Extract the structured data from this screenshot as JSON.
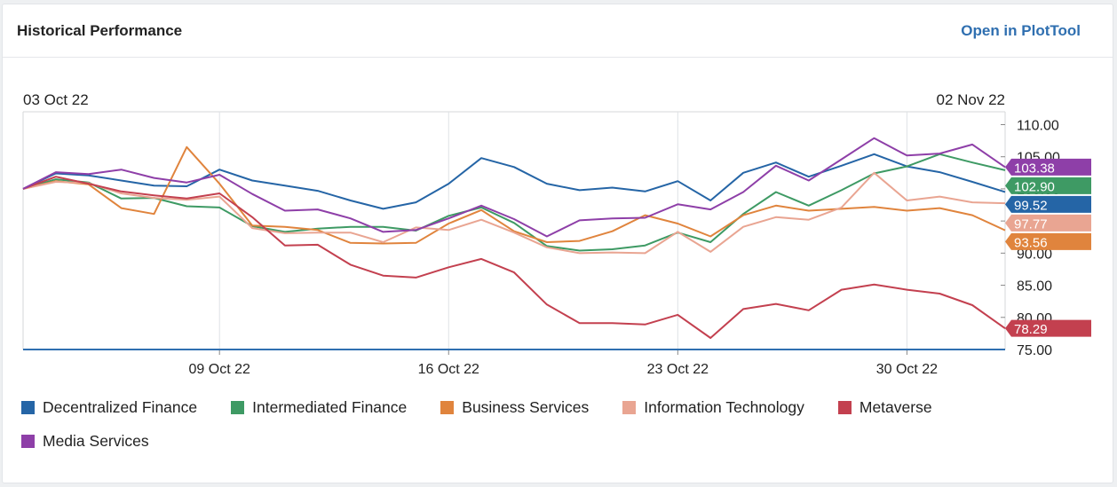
{
  "card": {
    "title": "Historical Performance",
    "open_link": "Open in PlotTool"
  },
  "chart_data": {
    "type": "line",
    "start_date_label": "03 Oct 22",
    "end_date_label": "02 Nov 22",
    "x": [
      "2022-10-03",
      "2022-10-04",
      "2022-10-05",
      "2022-10-06",
      "2022-10-07",
      "2022-10-08",
      "2022-10-09",
      "2022-10-10",
      "2022-10-11",
      "2022-10-12",
      "2022-10-13",
      "2022-10-14",
      "2022-10-15",
      "2022-10-16",
      "2022-10-17",
      "2022-10-18",
      "2022-10-19",
      "2022-10-20",
      "2022-10-21",
      "2022-10-22",
      "2022-10-23",
      "2022-10-24",
      "2022-10-25",
      "2022-10-26",
      "2022-10-27",
      "2022-10-28",
      "2022-10-29",
      "2022-10-30",
      "2022-10-31",
      "2022-11-01",
      "2022-11-02"
    ],
    "x_ticks": [
      "09 Oct 22",
      "16 Oct 22",
      "23 Oct 22",
      "30 Oct 22"
    ],
    "x_tick_dates": [
      "2022-10-09",
      "2022-10-16",
      "2022-10-23",
      "2022-10-30"
    ],
    "y_ticks": [
      "75.00",
      "80.00",
      "85.00",
      "90.00",
      "95.00",
      "100.00",
      "105.00",
      "110.00"
    ],
    "y_tick_values": [
      75,
      80,
      85,
      90,
      95,
      100,
      105,
      110
    ],
    "ylim": [
      75,
      112
    ],
    "grid": "vertical",
    "legend_position": "bottom",
    "series": [
      {
        "name": "Decentralized Finance",
        "color": "#2565a6",
        "end_label": "99.52",
        "values": [
          100,
          102.4,
          102.1,
          101.3,
          100.5,
          100.4,
          103,
          101.3,
          100.5,
          99.7,
          98.2,
          96.9,
          97.9,
          100.8,
          104.8,
          103.4,
          100.8,
          99.8,
          100.2,
          99.6,
          101.2,
          98.2,
          102.5,
          104.1,
          101.9,
          103.6,
          105.4,
          103.5,
          102.6,
          101.1,
          99.52
        ]
      },
      {
        "name": "Intermediated Finance",
        "color": "#3e9a64",
        "end_label": "102.90",
        "values": [
          100,
          101.5,
          101,
          98.5,
          98.6,
          97.3,
          97.1,
          94.2,
          93.3,
          93.8,
          94.1,
          94.1,
          93.5,
          95.8,
          97.1,
          94.7,
          91.1,
          90.4,
          90.6,
          91.2,
          93.2,
          91.7,
          96.1,
          99.5,
          97.4,
          99.8,
          102.4,
          103.5,
          105.4,
          104.1,
          102.9
        ]
      },
      {
        "name": "Business Services",
        "color": "#e0843d",
        "end_label": "93.56",
        "values": [
          100,
          101.2,
          100.7,
          97,
          96.1,
          106.5,
          100.8,
          94.3,
          94.1,
          93.6,
          91.6,
          91.5,
          91.6,
          94.6,
          96.7,
          93.4,
          91.7,
          91.9,
          93.4,
          95.9,
          94.6,
          92.6,
          95.9,
          97.4,
          96.6,
          96.9,
          97.2,
          96.6,
          97,
          95.9,
          93.56
        ]
      },
      {
        "name": "Information Technology",
        "color": "#e9a592",
        "end_label": "97.77",
        "values": [
          100,
          101.1,
          100.9,
          99.3,
          98.6,
          98.3,
          98.8,
          93.9,
          93.1,
          93.2,
          93.2,
          91.7,
          94,
          93.6,
          95.2,
          93.2,
          90.9,
          90,
          90.1,
          90,
          93.3,
          90.2,
          94.1,
          95.6,
          95.2,
          97.1,
          102.5,
          98.2,
          98.8,
          97.9,
          97.77
        ]
      },
      {
        "name": "Metaverse",
        "color": "#c3404f",
        "end_label": "78.29",
        "values": [
          100,
          101.9,
          100.8,
          99.6,
          99,
          98.5,
          99.3,
          95.6,
          91.2,
          91.3,
          88.2,
          86.5,
          86.2,
          87.8,
          89.1,
          87,
          82,
          79.1,
          79.1,
          78.9,
          80.4,
          76.8,
          81.3,
          82.1,
          81.1,
          84.3,
          85.1,
          84.3,
          83.7,
          81.9,
          78.29
        ]
      },
      {
        "name": "Media Services",
        "color": "#8e3fa8",
        "end_label": "103.38",
        "values": [
          100,
          102.6,
          102.3,
          103,
          101.7,
          101,
          102.2,
          99.2,
          96.6,
          96.8,
          95.4,
          93.3,
          93.6,
          95.4,
          97.4,
          95.3,
          92.6,
          95.1,
          95.4,
          95.5,
          97.6,
          96.8,
          99.5,
          103.6,
          101.3,
          104.6,
          107.9,
          105.2,
          105.5,
          106.9,
          103.38
        ]
      }
    ]
  }
}
